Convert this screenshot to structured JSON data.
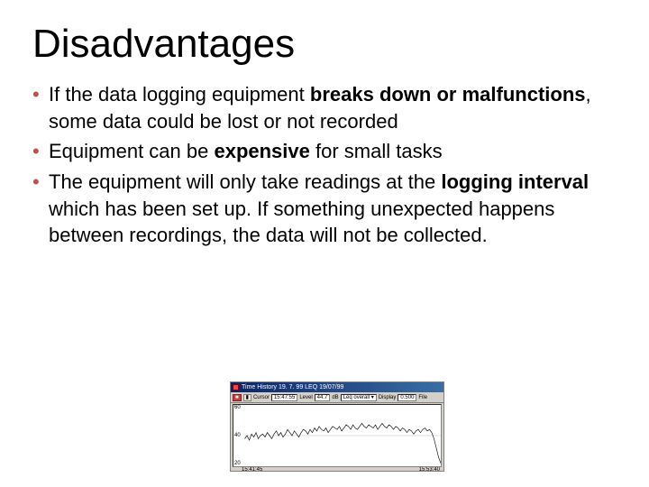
{
  "title": "Disadvantages",
  "bullets": [
    {
      "pre": "If the data logging equipment ",
      "bold": "breaks down or malfunctions",
      "post": ", some data could be lost or not recorded"
    },
    {
      "pre": "Equipment can be ",
      "bold": "expensive",
      "post": " for small tasks"
    },
    {
      "pre": "The equipment will only take readings at the ",
      "bold": "logging interval",
      "post": " which has been set up. If something unexpected happens between recordings, the data will not be collected."
    }
  ],
  "embed": {
    "titlebar": "Time History  19. 7. 99 LEQ  19/07/99",
    "toolbar": {
      "btn1": "■",
      "btn2": "▮",
      "cursor_label": "Cursor",
      "cursor_val": "15:47:55",
      "level_label": "Level",
      "level_val": "44.7",
      "unit": "dB",
      "type_val": "Leq overall ▾",
      "disp_label": "Display",
      "disp_val": "0.500",
      "file_label": "File"
    },
    "chart": {
      "type": "line",
      "ylim": [
        20,
        60
      ],
      "yticks": [
        20,
        40,
        60
      ],
      "x_labels": [
        "15:41:45",
        "15:53:40"
      ],
      "background_color": "#ffffff",
      "grid_color": "#c0c0c0",
      "line_color": "#000000",
      "line_width": 0.6,
      "values": [
        38,
        40,
        37,
        41,
        39,
        42,
        38,
        40,
        41,
        39,
        42,
        40,
        38,
        41,
        43,
        40,
        42,
        39,
        41,
        44,
        42,
        40,
        43,
        41,
        39,
        42,
        44,
        43,
        41,
        44,
        42,
        45,
        43,
        46,
        44,
        43,
        45,
        42,
        44,
        46,
        45,
        44,
        46,
        43,
        45,
        47,
        46,
        44,
        47,
        45,
        44,
        46,
        48,
        46,
        45,
        47,
        46,
        45,
        47,
        44,
        46,
        48,
        46,
        45,
        47,
        46,
        44,
        46,
        45,
        43,
        45,
        44,
        42,
        44,
        43,
        41,
        43,
        44,
        42,
        44,
        45,
        43,
        44,
        42,
        38,
        32,
        26,
        22
      ]
    }
  },
  "colors": {
    "bullet": "#c0504d",
    "text": "#000000",
    "background": "#ffffff"
  }
}
